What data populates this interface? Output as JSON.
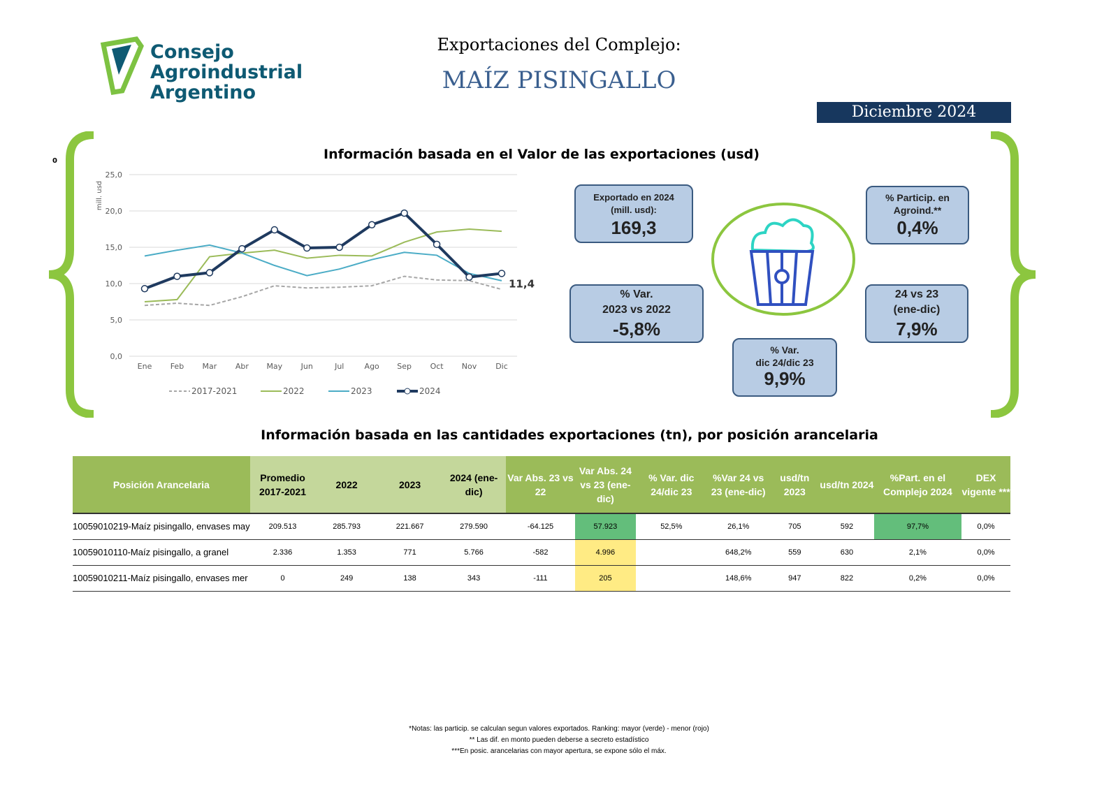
{
  "header": {
    "logo_lines": [
      "Consejo",
      "Agroindustrial",
      "Argentino"
    ],
    "title": "Exportaciones del Complejo:",
    "product": "MAÍZ PISINGALLO",
    "period": "Diciembre 2024",
    "stray_mark": "0"
  },
  "value_section": {
    "title": "Información basada en el Valor de las exportaciones (usd)"
  },
  "chart_data": {
    "type": "line",
    "ylabel": "mill. usd",
    "ylim": [
      0,
      25
    ],
    "yticks": [
      "0,0",
      "5,0",
      "10,0",
      "15,0",
      "20,0",
      "25,0"
    ],
    "grid": true,
    "legend": "bottom",
    "categories": [
      "Ene",
      "Feb",
      "Mar",
      "Abr",
      "May",
      "Jun",
      "Jul",
      "Ago",
      "Sep",
      "Oct",
      "Nov",
      "Dic"
    ],
    "series": [
      {
        "name": "2017-2021",
        "color": "#a6a6a6",
        "dashed": true,
        "values": [
          7.0,
          7.3,
          7.0,
          8.2,
          9.7,
          9.4,
          9.5,
          9.7,
          11.0,
          10.5,
          10.4,
          9.2
        ]
      },
      {
        "name": "2022",
        "color": "#9bbb59",
        "values": [
          7.5,
          7.8,
          13.7,
          14.2,
          14.6,
          13.5,
          13.9,
          13.8,
          15.7,
          17.1,
          17.5,
          17.2
        ]
      },
      {
        "name": "2023",
        "color": "#4bacc6",
        "values": [
          13.8,
          14.6,
          15.3,
          14.2,
          12.5,
          11.1,
          12.0,
          13.3,
          14.3,
          13.9,
          11.4,
          10.4
        ]
      },
      {
        "name": "2024",
        "color": "#1f3a5f",
        "markers": true,
        "values": [
          9.3,
          11.0,
          11.5,
          14.8,
          17.4,
          14.9,
          15.0,
          18.1,
          19.7,
          15.4,
          10.9,
          11.4
        ]
      }
    ],
    "last_label": "11,4"
  },
  "kpis": {
    "exported": {
      "label": "Exportado en 2024 (mill. usd):",
      "value": "169,3"
    },
    "particip": {
      "label": "% Particip. en Agroind.**",
      "value": "0,4%"
    },
    "var2322": {
      "label1": "% Var.",
      "label2": "2023 vs 2022",
      "value": "-5,8%"
    },
    "var2423": {
      "label1": "24 vs 23",
      "label2": "(ene-dic)",
      "value": "7,9%"
    },
    "vardic": {
      "label1": "% Var.",
      "label2": "dic 24/dic 23",
      "value": "9,9%"
    },
    "icon": "popcorn-icon"
  },
  "qty_section": {
    "title": "Información basada en las cantidades exportaciones (tn), por posición arancelaria"
  },
  "table": {
    "headers": [
      "Posición Arancelaria",
      "Promedio 2017-2021",
      "2022",
      "2023",
      "2024 (ene-dic)",
      "Var Abs. 23 vs 22",
      "Var Abs. 24 vs 23 (ene-dic)",
      "% Var. dic 24/dic 23",
      "%Var 24 vs 23 (ene-dic)",
      "usd/tn 2023",
      "usd/tn 2024",
      "%Part. en el Complejo 2024",
      "DEX vigente ***"
    ],
    "rows": [
      [
        "10059010219-Maíz pisingallo, envases may",
        "209.513",
        "285.793",
        "221.667",
        "279.590",
        "-64.125",
        "57.923",
        "52,5%",
        "26,1%",
        "705",
        "592",
        "97,7%",
        "0,0%"
      ],
      [
        "10059010110-Maíz pisingallo, a granel",
        "2.336",
        "1.353",
        "771",
        "5.766",
        "-582",
        "4.996",
        "",
        "648,2%",
        "559",
        "630",
        "2,1%",
        "0,0%"
      ],
      [
        "10059010211-Maíz pisingallo, envases mer",
        "0",
        "249",
        "138",
        "343",
        "-111",
        "205",
        "",
        "148,6%",
        "947",
        "822",
        "0,2%",
        "0,0%"
      ]
    ],
    "highlight_colors": {
      "green": "#63be7b",
      "yellow": "#ffeb84"
    }
  },
  "notes": [
    "*Notas: las particip. se calculan segun valores exportados. Ranking: mayor (verde) - menor (rojo)",
    "** Las dif. en monto pueden deberse a secreto estadístico",
    "***En posic. arancelarias con mayor apertura, se expone sólo el máx."
  ]
}
